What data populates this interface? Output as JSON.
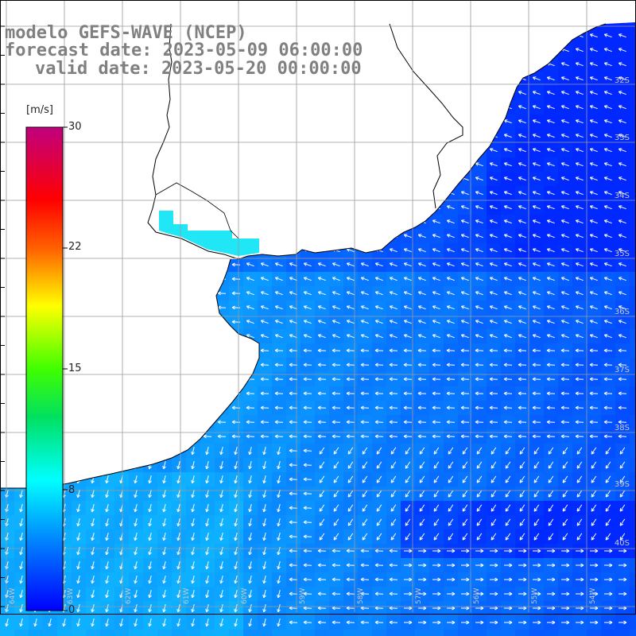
{
  "title": {
    "line1": "modelo GEFS-WAVE (NCEP)",
    "line2": "forecast date: 2023-05-09 06:00:00",
    "line3": "valid date: 2023-05-20 00:00:00"
  },
  "colorbar": {
    "unit": "[m/s]",
    "ticks": [
      "30",
      "22",
      "15",
      "8",
      "0"
    ],
    "min": 0,
    "max": 30
  },
  "lat_labels": [
    "32S",
    "33S",
    "34S",
    "35S",
    "36S",
    "37S",
    "38S",
    "39S",
    "40S"
  ],
  "lon_labels": [
    "64W",
    "63W",
    "62W",
    "61W",
    "60W",
    "59W",
    "58W",
    "57W",
    "56W",
    "55W",
    "54W"
  ],
  "colors": {
    "land": "#ffffff",
    "coast": "#000000",
    "grid": "#9a9a9a",
    "arrow": "#ffffff",
    "title": "#808080"
  }
}
